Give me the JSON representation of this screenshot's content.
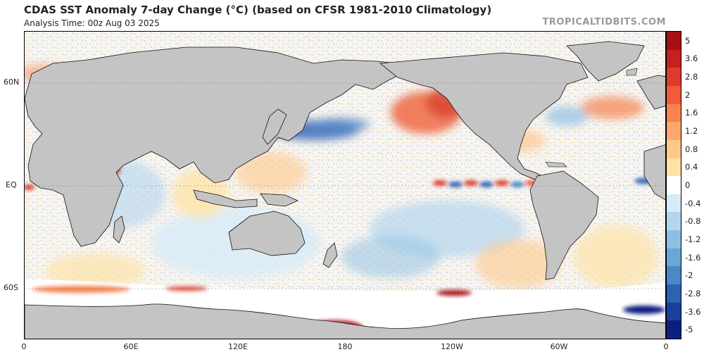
{
  "header": {
    "title": "CDAS SST Anomaly 7-day Change (°C) (based on CFSR 1981-2010 Climatology)",
    "analysis_time": "Analysis Time: 00z Aug 03 2025",
    "brand": "TROPICALTIDBITS.COM"
  },
  "axes": {
    "lat_labels": [
      "60N",
      "EQ",
      "60S"
    ],
    "lon_labels": [
      "0",
      "60E",
      "120E",
      "180",
      "120W",
      "60W",
      "0"
    ]
  },
  "colorbar": {
    "labels": [
      "5",
      "3.6",
      "2.8",
      "2",
      "1.6",
      "1.2",
      "0.8",
      "0.4",
      "0",
      "-0.4",
      "-0.8",
      "-1.2",
      "-1.6",
      "-2",
      "-2.8",
      "-3.6",
      "-5"
    ],
    "colors": [
      "#a50f15",
      "#c81f1f",
      "#de3b2c",
      "#ef5a3a",
      "#f7834f",
      "#fba86a",
      "#fdc98a",
      "#fee3a6",
      "#ffffff",
      "#d6ebf7",
      "#b3d6ee",
      "#8ebfe3",
      "#6aa6d6",
      "#4a88c6",
      "#2d62b3",
      "#1a3f9c",
      "#0b1f80"
    ]
  },
  "map": {
    "land_color": "#c4c4c4",
    "ice_color": "#ffffff",
    "border_color": "#111111"
  }
}
